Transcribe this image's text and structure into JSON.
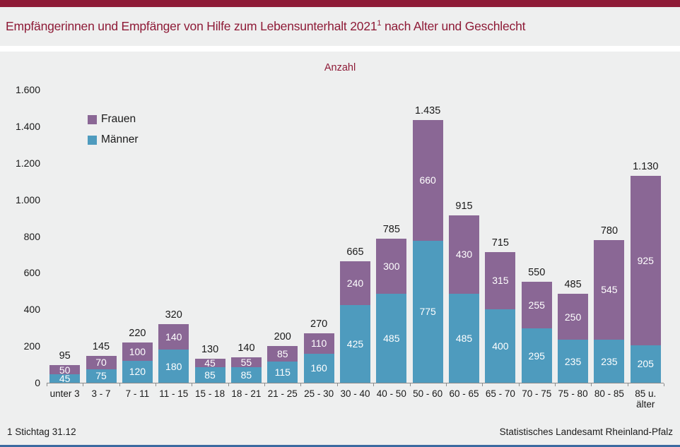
{
  "page": {
    "title_main": "Empfängerinnen und Empfänger von Hilfe zum Lebensunterhalt 2021",
    "title_sup": "1",
    "title_rest": " nach Alter und Geschlecht",
    "footer_note": "1 Stichtag 31.12",
    "footer_source": "Statistisches Landesamt Rheinland-Pfalz"
  },
  "colors": {
    "accent_maroon": "#8E1B37",
    "frauen_purple": "#8A6795",
    "maenner_teal": "#4E9BBE",
    "background_gray": "#EEEFEF",
    "bottom_bar_blue": "#3B6AA0",
    "axis_gray": "#8C8C8C"
  },
  "chart_data": {
    "type": "bar",
    "stacked": true,
    "title": "Anzahl",
    "categories": [
      "unter 3",
      "3 - 7",
      "7 - 11",
      "11 - 15",
      "15 - 18",
      "18 - 21",
      "21 - 25",
      "25 - 30",
      "30 - 40",
      "40 - 50",
      "50 - 60",
      "60 - 65",
      "65 - 70",
      "70 - 75",
      "75 - 80",
      "80 - 85",
      "85 u. älter"
    ],
    "series": [
      {
        "name": "Frauen",
        "color": "#8A6795",
        "values": [
          50,
          70,
          100,
          140,
          45,
          55,
          85,
          110,
          240,
          300,
          660,
          430,
          315,
          255,
          250,
          545,
          925
        ]
      },
      {
        "name": "Männer",
        "color": "#4E9BBE",
        "values": [
          45,
          75,
          120,
          180,
          85,
          85,
          115,
          160,
          425,
          485,
          775,
          485,
          400,
          295,
          235,
          235,
          205
        ]
      }
    ],
    "stack_bottom_to_top": [
      1,
      0
    ],
    "totals": [
      95,
      145,
      220,
      320,
      130,
      140,
      200,
      270,
      665,
      785,
      1435,
      915,
      715,
      550,
      485,
      780,
      1130
    ],
    "ylim": [
      0,
      1600
    ],
    "ytick_step": 200,
    "grid": false,
    "legend_position": "top-left",
    "value_labels": "white inside segments, totals above bars",
    "number_format": "de-DE thousands dot"
  }
}
